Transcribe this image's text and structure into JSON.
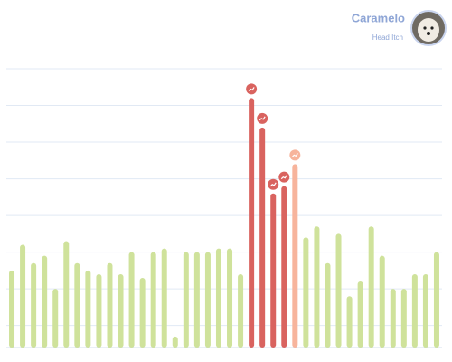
{
  "header": {
    "name": "Caramelo",
    "subtitle": "Head Itch"
  },
  "chart_data": {
    "type": "bar",
    "values": [
      2.1,
      2.8,
      2.3,
      2.5,
      1.6,
      2.9,
      2.3,
      2.1,
      2.0,
      2.3,
      2.0,
      2.6,
      1.9,
      2.6,
      2.7,
      0.3,
      2.6,
      2.6,
      2.6,
      2.7,
      2.7,
      2.0,
      6.8,
      6.0,
      4.2,
      4.4,
      5.0,
      3.0,
      3.3,
      2.3,
      3.1,
      1.4,
      1.8,
      3.3,
      2.5,
      1.6,
      1.6,
      2.0,
      2.0,
      2.6
    ],
    "color": "#cfe29b",
    "colors": [
      "#cfe29b",
      "#cfe29b",
      "#cfe29b",
      "#cfe29b",
      "#cfe29b",
      "#cfe29b",
      "#cfe29b",
      "#cfe29b",
      "#cfe29b",
      "#cfe29b",
      "#cfe29b",
      "#cfe29b",
      "#cfe29b",
      "#cfe29b",
      "#cfe29b",
      "#cfe29b",
      "#cfe29b",
      "#cfe29b",
      "#cfe29b",
      "#cfe29b",
      "#cfe29b",
      "#cfe29b",
      "#d9635f",
      "#d9635f",
      "#d9635f",
      "#d9635f",
      "#f7b49c",
      "#cfe29b",
      "#cfe29b",
      "#cfe29b",
      "#cfe29b",
      "#cfe29b",
      "#cfe29b",
      "#cfe29b",
      "#cfe29b",
      "#cfe29b",
      "#cfe29b",
      "#cfe29b",
      "#cfe29b",
      "#cfe29b"
    ],
    "ylim": [
      0,
      7.6
    ],
    "yticks": [
      0.6,
      1.6,
      2.6,
      3.6,
      4.6,
      5.6,
      6.6,
      7.6
    ],
    "grid": true
  }
}
